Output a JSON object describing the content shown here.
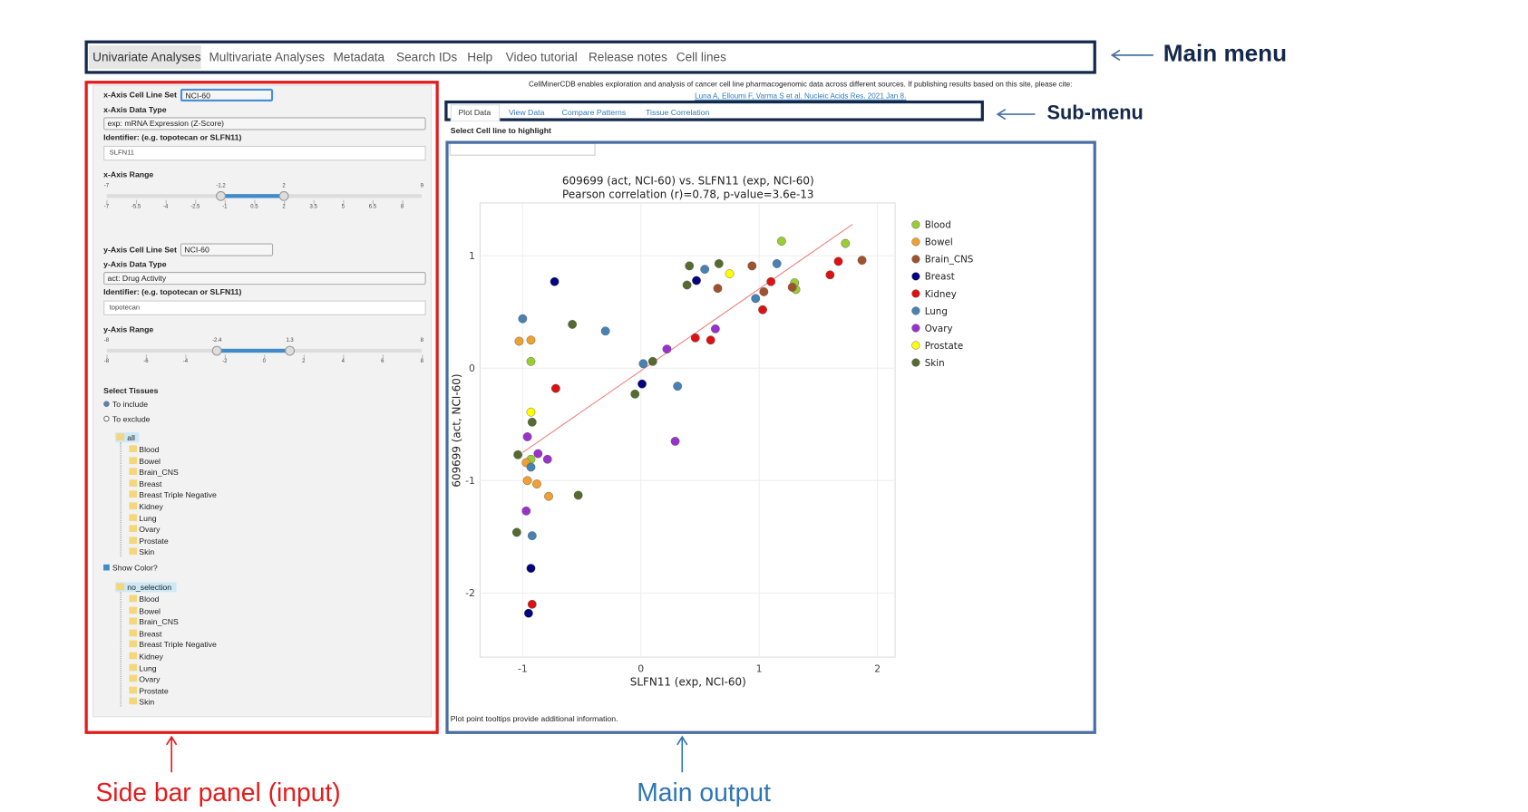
{
  "main_menu": {
    "items": [
      "Univariate Analyses",
      "Multivariate Analyses",
      "Metadata",
      "Search IDs",
      "Help",
      "Video tutorial",
      "Release notes",
      "Cell lines"
    ],
    "label": "Main menu"
  },
  "intro": {
    "text": "CellMinerCDB enables exploration and analysis of cancer cell line pharmacogenomic data across different sources. If publishing results based on this site, please cite:",
    "citation": "Luna A, Elloumi F, Varma S et al. Nucleic Acids Res. 2021 Jan 8."
  },
  "sub_menu": {
    "items": [
      "Plot Data",
      "View Data",
      "Compare Patterns",
      "Tissue Correlation"
    ],
    "label": "Sub-menu"
  },
  "highlight": {
    "label": "Select Cell line to highlight"
  },
  "sidebar": {
    "label": "Side bar panel (input)",
    "x_axis": {
      "cell_line_set_label": "x-Axis Cell Line Set",
      "cell_line_set": "NCI-60",
      "data_type_label": "x-Axis Data Type",
      "data_type": "exp: mRNA Expression (Z-Score)",
      "identifier_label": "Identifier: (e.g. topotecan or SLFN11)",
      "identifier": "SLFN11",
      "range_label": "x-Axis Range",
      "range": [
        -7,
        9
      ],
      "selected": [
        -1.2,
        2
      ],
      "ticks": [
        -7,
        -5.5,
        -4,
        -2.5,
        -1,
        0.5,
        2,
        3.5,
        5,
        6.5,
        8
      ]
    },
    "y_axis": {
      "cell_line_set_label": "y-Axis Cell Line Set",
      "cell_line_set": "NCI-60",
      "data_type_label": "y-Axis Data Type",
      "data_type": "act: Drug Activity",
      "identifier_label": "Identifier: (e.g. topotecan or SLFN11)",
      "identifier": "topotecan",
      "range_label": "y-Axis Range",
      "range": [
        -8,
        8
      ],
      "selected": [
        -2.4,
        1.3
      ],
      "ticks": [
        -8,
        -6,
        -4,
        -2,
        0,
        2,
        4,
        6,
        8
      ]
    },
    "tissues": {
      "title": "Select Tissues",
      "options": [
        "To include",
        "To exclude"
      ],
      "root": "all",
      "items": [
        "Blood",
        "Bowel",
        "Brain_CNS",
        "Breast",
        "Breast Triple Negative",
        "Kidney",
        "Lung",
        "Ovary",
        "Prostate",
        "Skin"
      ],
      "show_color": "Show Color?",
      "color_root": "no_selection",
      "color_items": [
        "Blood",
        "Bowel",
        "Brain_CNS",
        "Breast",
        "Breast Triple Negative",
        "Kidney",
        "Lung",
        "Ovary",
        "Prostate",
        "Skin"
      ]
    }
  },
  "main_output": {
    "label": "Main output",
    "note": "Plot point tooltips provide additional information."
  },
  "chart_data": {
    "type": "scatter",
    "title": "609699 (act, NCI-60) vs. SLFN11 (exp, NCI-60)",
    "subtitle": "Pearson correlation (r)=0.78, p-value=3.6e-13",
    "x_label": "SLFN11 (exp, NCI-60)",
    "y_label": "609699 (act, NCI-60)",
    "xlim": [
      -1.36,
      2.15
    ],
    "ylim": [
      -2.57,
      1.47
    ],
    "xticks": [
      -1,
      0,
      1,
      2
    ],
    "yticks": [
      -2,
      -1,
      0,
      1
    ],
    "grid": true,
    "legend": "right",
    "trendline": {
      "color": "#f08080",
      "x": [
        -1.0,
        1.79
      ],
      "y": [
        -0.75,
        1.28
      ]
    },
    "series": [
      {
        "name": "Blood",
        "color": "#9acd32",
        "x": [
          1.19,
          1.73,
          1.3,
          1.31,
          -0.93,
          -0.93
        ],
        "values": [
          1.13,
          1.11,
          0.76,
          0.7,
          0.06,
          -0.81
        ]
      },
      {
        "name": "Bowel",
        "color": "#f0a030",
        "x": [
          -1.03,
          -0.93,
          -0.97,
          -0.96,
          -0.88,
          -0.78
        ],
        "values": [
          0.24,
          0.25,
          -0.84,
          -1.0,
          -1.03,
          -1.14
        ]
      },
      {
        "name": "Brain_CNS",
        "color": "#a0522d",
        "x": [
          0.94,
          0.65,
          1.04,
          1.28,
          1.87
        ],
        "values": [
          0.91,
          0.71,
          0.68,
          0.72,
          0.96
        ]
      },
      {
        "name": "Breast",
        "color": "#000080",
        "x": [
          -0.73,
          0.47,
          0.01,
          -0.93,
          -0.95
        ],
        "values": [
          0.77,
          0.78,
          -0.14,
          -1.78,
          -2.18
        ]
      },
      {
        "name": "Kidney",
        "color": "#dd1111",
        "x": [
          -0.72,
          0.46,
          0.59,
          1.03,
          1.1,
          1.6,
          1.67,
          -0.92
        ],
        "values": [
          -0.18,
          0.27,
          0.25,
          0.52,
          0.77,
          0.83,
          0.95,
          -2.1
        ]
      },
      {
        "name": "Lung",
        "color": "#4682b4",
        "x": [
          -1.0,
          -0.3,
          0.02,
          0.31,
          0.54,
          0.97,
          1.15,
          -0.93,
          -0.92
        ],
        "values": [
          0.44,
          0.33,
          0.04,
          -0.16,
          0.88,
          0.62,
          0.93,
          -0.88,
          -1.49
        ]
      },
      {
        "name": "Ovary",
        "color": "#9932cc",
        "x": [
          0.22,
          0.63,
          0.29,
          -0.96,
          -0.87,
          -0.79,
          -0.97
        ],
        "values": [
          0.17,
          0.35,
          -0.65,
          -0.61,
          -0.76,
          -0.81,
          -1.27
        ]
      },
      {
        "name": "Prostate",
        "color": "#ffff00",
        "x": [
          0.75,
          -0.93
        ],
        "values": [
          0.84,
          -0.39
        ]
      },
      {
        "name": "Skin",
        "color": "#556b2f",
        "x": [
          0.41,
          0.39,
          0.66,
          -0.58,
          0.1,
          -0.05,
          -0.92,
          -1.04,
          -0.53,
          -1.05
        ],
        "values": [
          0.91,
          0.74,
          0.93,
          0.39,
          0.06,
          -0.23,
          -0.48,
          -0.77,
          -1.13,
          -1.46
        ]
      }
    ]
  }
}
